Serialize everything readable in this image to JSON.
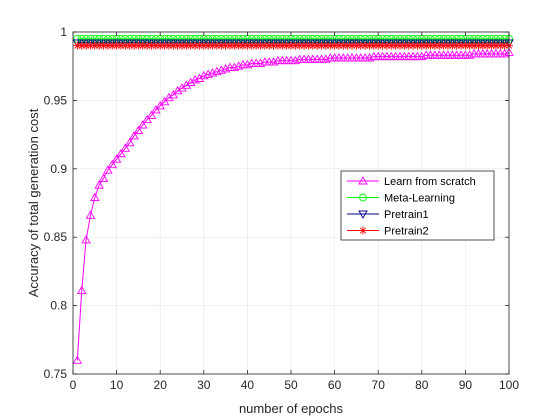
{
  "chart_data": {
    "type": "line",
    "title": "",
    "xlabel": "number of epochs",
    "ylabel": "Accuracy of total generation cost",
    "xlim": [
      0,
      100
    ],
    "ylim": [
      0.75,
      1.0
    ],
    "xticks": [
      0,
      10,
      20,
      30,
      40,
      50,
      60,
      70,
      80,
      90,
      100
    ],
    "yticks": [
      0.75,
      0.8,
      0.85,
      0.9,
      0.95,
      1.0
    ],
    "ytick_labels": [
      "0.75",
      "0.8",
      "0.85",
      "0.9",
      "0.95",
      "1"
    ],
    "grid": true,
    "legend_position": "center-right",
    "x": [
      1,
      2,
      3,
      4,
      5,
      6,
      7,
      8,
      9,
      10,
      11,
      12,
      13,
      14,
      15,
      16,
      17,
      18,
      19,
      20,
      21,
      22,
      23,
      24,
      25,
      26,
      27,
      28,
      29,
      30,
      31,
      32,
      33,
      34,
      35,
      36,
      37,
      38,
      39,
      40,
      41,
      42,
      43,
      44,
      45,
      46,
      47,
      48,
      49,
      50,
      51,
      52,
      53,
      54,
      55,
      56,
      57,
      58,
      59,
      60,
      61,
      62,
      63,
      64,
      65,
      66,
      67,
      68,
      69,
      70,
      71,
      72,
      73,
      74,
      75,
      76,
      77,
      78,
      79,
      80,
      81,
      82,
      83,
      84,
      85,
      86,
      87,
      88,
      89,
      90,
      91,
      92,
      93,
      94,
      95,
      96,
      97,
      98,
      99,
      100
    ],
    "series": [
      {
        "name": "Learn from scratch",
        "color": "#ff00ff",
        "marker": "triangle-up",
        "values": [
          0.76,
          0.811,
          0.848,
          0.866,
          0.879,
          0.888,
          0.893,
          0.899,
          0.903,
          0.907,
          0.911,
          0.915,
          0.919,
          0.924,
          0.928,
          0.932,
          0.936,
          0.939,
          0.943,
          0.946,
          0.949,
          0.952,
          0.954,
          0.957,
          0.959,
          0.961,
          0.963,
          0.965,
          0.966,
          0.968,
          0.969,
          0.97,
          0.971,
          0.972,
          0.973,
          0.974,
          0.974,
          0.975,
          0.976,
          0.976,
          0.977,
          0.977,
          0.977,
          0.978,
          0.978,
          0.978,
          0.979,
          0.979,
          0.979,
          0.979,
          0.979,
          0.98,
          0.98,
          0.98,
          0.98,
          0.98,
          0.98,
          0.98,
          0.981,
          0.981,
          0.981,
          0.981,
          0.981,
          0.981,
          0.981,
          0.981,
          0.981,
          0.981,
          0.982,
          0.982,
          0.982,
          0.982,
          0.982,
          0.982,
          0.982,
          0.982,
          0.982,
          0.982,
          0.982,
          0.982,
          0.983,
          0.983,
          0.983,
          0.983,
          0.983,
          0.983,
          0.983,
          0.983,
          0.983,
          0.983,
          0.983,
          0.984,
          0.984,
          0.984,
          0.984,
          0.984,
          0.984,
          0.984,
          0.984,
          0.985
        ]
      },
      {
        "name": "Meta-Learning",
        "color": "#00ff00",
        "marker": "circle",
        "constant": 0.995
      },
      {
        "name": "Pretrain1",
        "color": "#00008b",
        "marker": "triangle-down",
        "constant": 0.992
      },
      {
        "name": "Pretrain2",
        "color": "#ff0000",
        "marker": "asterisk",
        "constant": 0.99
      }
    ]
  }
}
